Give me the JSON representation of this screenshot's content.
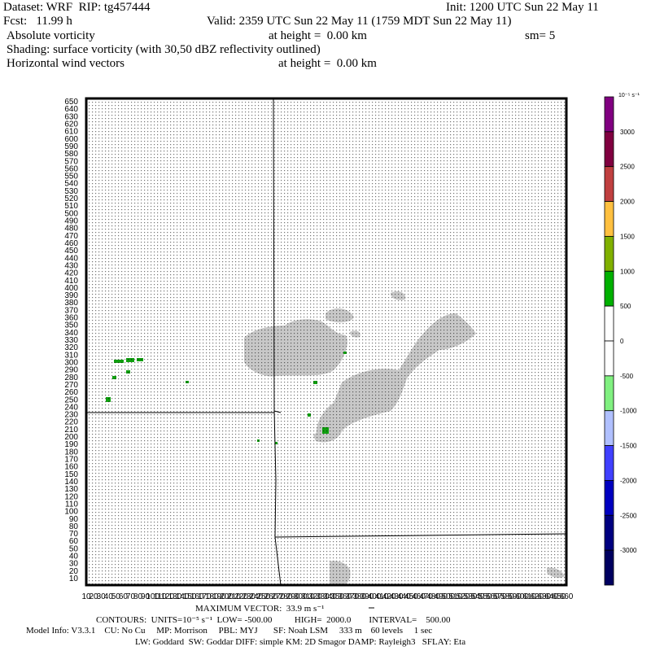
{
  "header": {
    "dataset": "Dataset: WRF  RIP: tg457444",
    "init": "Init: 1200 UTC Sun 22 May 11",
    "fcst": "Fcst:   11.99 h",
    "valid": "Valid: 2359 UTC Sun 22 May 11 (1759 MDT Sun 22 May 11)",
    "field1_name": "Absolute vorticity",
    "field1_height": "at height =  0.00 km",
    "smoothing": "sm= 5",
    "shading": "Shading: surface vorticity (with 30,50 dBZ reflectivity outlined)",
    "field2_name": "Horizontal wind vectors",
    "field2_height": "at height =  0.00 km"
  },
  "axes": {
    "y_ticks": [
      10,
      20,
      30,
      40,
      50,
      60,
      70,
      80,
      90,
      100,
      110,
      120,
      130,
      140,
      150,
      160,
      170,
      180,
      190,
      200,
      210,
      220,
      230,
      240,
      250,
      260,
      270,
      280,
      290,
      300,
      310,
      320,
      330,
      340,
      350,
      360,
      370,
      380,
      390,
      400,
      410,
      420,
      430,
      440,
      450,
      460,
      470,
      480,
      490,
      500,
      510,
      520,
      530,
      540,
      550,
      560,
      570,
      580,
      590,
      600,
      610,
      620,
      630,
      640,
      650
    ],
    "x_ticks": [
      10,
      20,
      30,
      40,
      50,
      60,
      70,
      80,
      90,
      100,
      110,
      120,
      130,
      140,
      150,
      160,
      170,
      180,
      190,
      200,
      210,
      220,
      230,
      240,
      250,
      260,
      270,
      280,
      290,
      300,
      310,
      320,
      330,
      340,
      350,
      360,
      370,
      380,
      390,
      400,
      410,
      420,
      430,
      440,
      450,
      460,
      470,
      480,
      490,
      500,
      510,
      520,
      530,
      540,
      550,
      560,
      570,
      580,
      590,
      600,
      610,
      620,
      630,
      640,
      650,
      660
    ],
    "x_range": [
      10,
      660
    ],
    "y_range": [
      10,
      650
    ]
  },
  "colorbar": {
    "units_label": "10⁻⁵ s⁻¹",
    "labels": [
      "3000",
      "2500",
      "2000",
      "1500",
      "1000",
      "500",
      "0",
      "-500",
      "-1000",
      "-1500",
      "-2000",
      "-2500",
      "-3000"
    ],
    "colors": [
      "#800080",
      "#800040",
      "#c04040",
      "#ffc040",
      "#80b000",
      "#00b000",
      "#ffffff",
      "#ffffff",
      "#80f080",
      "#b0c0ff",
      "#4040ff",
      "#0000c0",
      "#000080",
      "#000060"
    ]
  },
  "footer": {
    "max_vector_label": "MAXIMUM VECTOR:  33.9 m s⁻¹",
    "contours": "CONTOURS:  UNITS=10⁻⁵ s⁻¹  LOW= -500.00          HIGH=  2000.0        INTERVAL=    500.00",
    "model_info": "Model Info: V3.3.1    CU: No Cu     MP: Morrison     PBL: MYJ       SF: Noah LSM     333 m    60 levels     1 sec",
    "model_info2": "LW: Goddard  SW: Goddar DIFF: simple KM: 2D Smagor DAMP: Rayleigh3   SFLAY: Eta"
  }
}
